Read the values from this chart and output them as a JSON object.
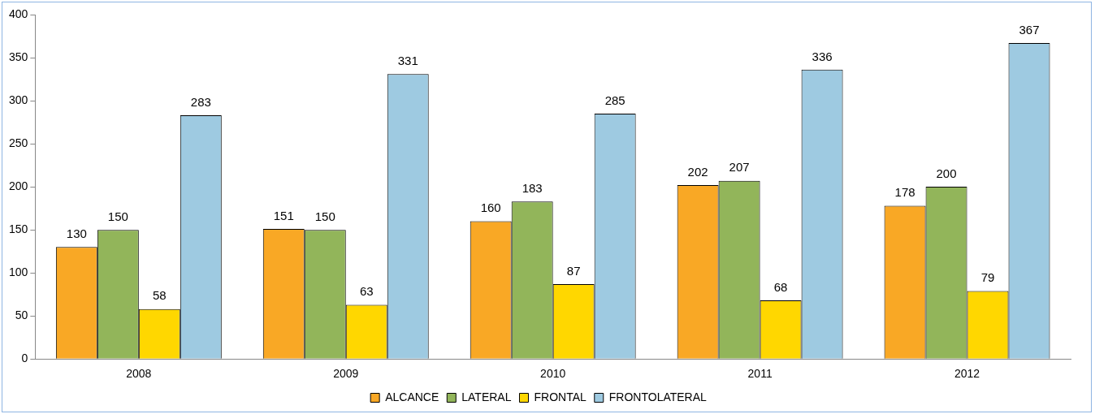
{
  "chart_data": {
    "type": "bar",
    "categories": [
      "2008",
      "2009",
      "2010",
      "2011",
      "2012"
    ],
    "series": [
      {
        "name": "ALCANCE",
        "color": "#f9a825",
        "values": [
          130,
          151,
          160,
          202,
          178
        ]
      },
      {
        "name": "LATERAL",
        "color": "#92b55a",
        "values": [
          150,
          150,
          183,
          207,
          200
        ]
      },
      {
        "name": "FRONTAL",
        "color": "#ffd700",
        "values": [
          58,
          63,
          87,
          68,
          79
        ]
      },
      {
        "name": "FRONTOLATERAL",
        "color": "#9ecae1",
        "values": [
          283,
          331,
          285,
          336,
          367
        ]
      }
    ],
    "ylim": [
      0,
      400
    ],
    "yticks": [
      0,
      50,
      100,
      150,
      200,
      250,
      300,
      350,
      400
    ],
    "grid": false,
    "legend": "bottom",
    "data_labels": true
  }
}
